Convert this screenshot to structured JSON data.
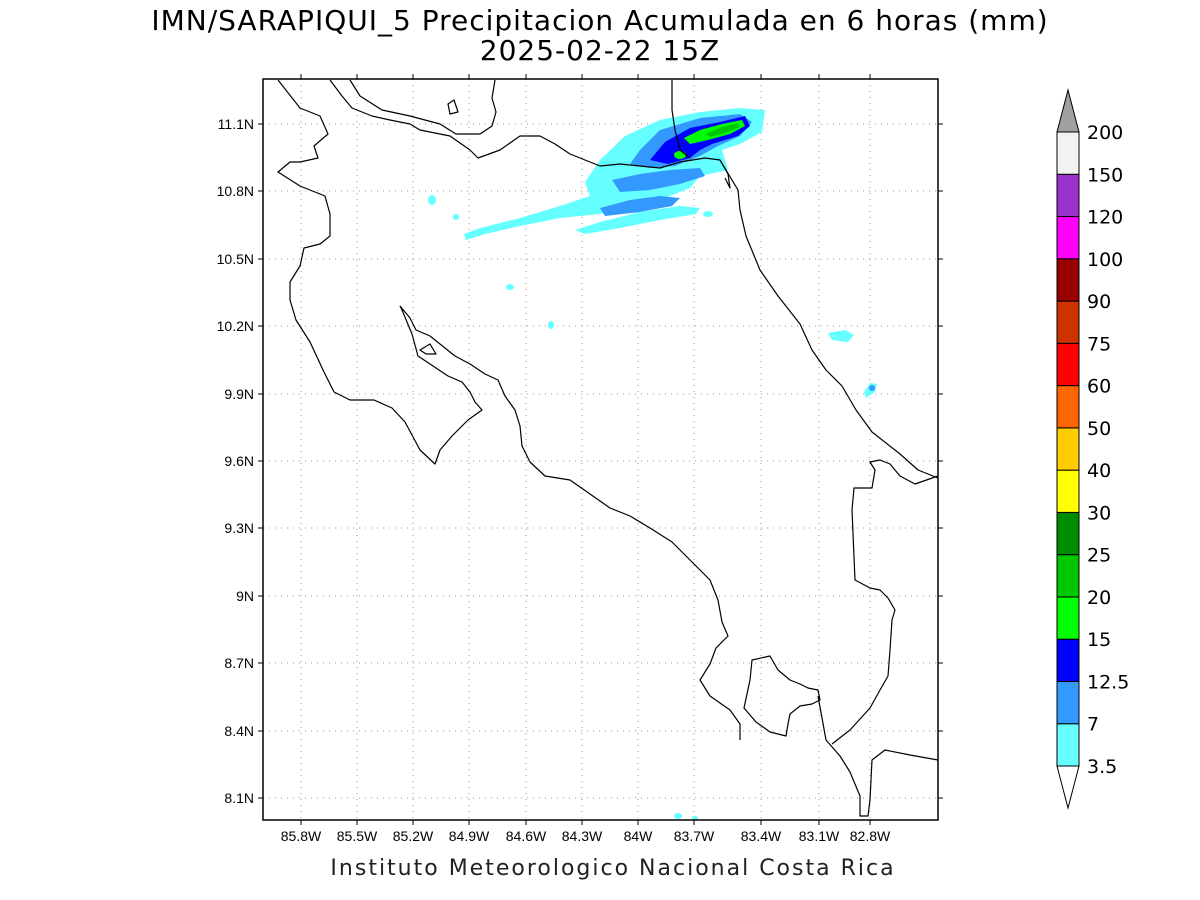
{
  "title": {
    "line1": "IMN/SARAPIQUI_5 Precipitacion Acumulada en 6 horas (mm)",
    "line2": "2025-02-22 15Z"
  },
  "footer": "Instituto Meteorologico Nacional Costa Rica",
  "map": {
    "lon_range": [
      -86.0,
      -82.6
    ],
    "lat_range": [
      8.0,
      11.3
    ],
    "x_ticks": [
      "85.8W",
      "85.5W",
      "85.2W",
      "84.9W",
      "84.6W",
      "84.3W",
      "84W",
      "83.7W",
      "83.4W",
      "83.1W",
      "82.8W"
    ],
    "y_ticks": [
      "8.1N",
      "8.4N",
      "8.7N",
      "9N",
      "9.3N",
      "9.6N",
      "9.9N",
      "10.2N",
      "10.5N",
      "10.8N",
      "11.1N"
    ],
    "grid": true
  },
  "colorbar": {
    "levels": [
      {
        "label": "3.5",
        "color": "#66ffff"
      },
      {
        "label": "7",
        "color": "#3399ff"
      },
      {
        "label": "12.5",
        "color": "#0000ff"
      },
      {
        "label": "15",
        "color": "#00ff00"
      },
      {
        "label": "20",
        "color": "#00c800"
      },
      {
        "label": "25",
        "color": "#008c00"
      },
      {
        "label": "30",
        "color": "#ffff00"
      },
      {
        "label": "40",
        "color": "#ffcc00"
      },
      {
        "label": "50",
        "color": "#ff6600"
      },
      {
        "label": "60",
        "color": "#ff0000"
      },
      {
        "label": "75",
        "color": "#cc3300"
      },
      {
        "label": "90",
        "color": "#990000"
      },
      {
        "label": "100",
        "color": "#ff00ff"
      },
      {
        "label": "120",
        "color": "#9933cc"
      },
      {
        "label": "150",
        "color": "#f2f2f2"
      },
      {
        "label": "200",
        "color": "#a0a0a0"
      }
    ]
  }
}
